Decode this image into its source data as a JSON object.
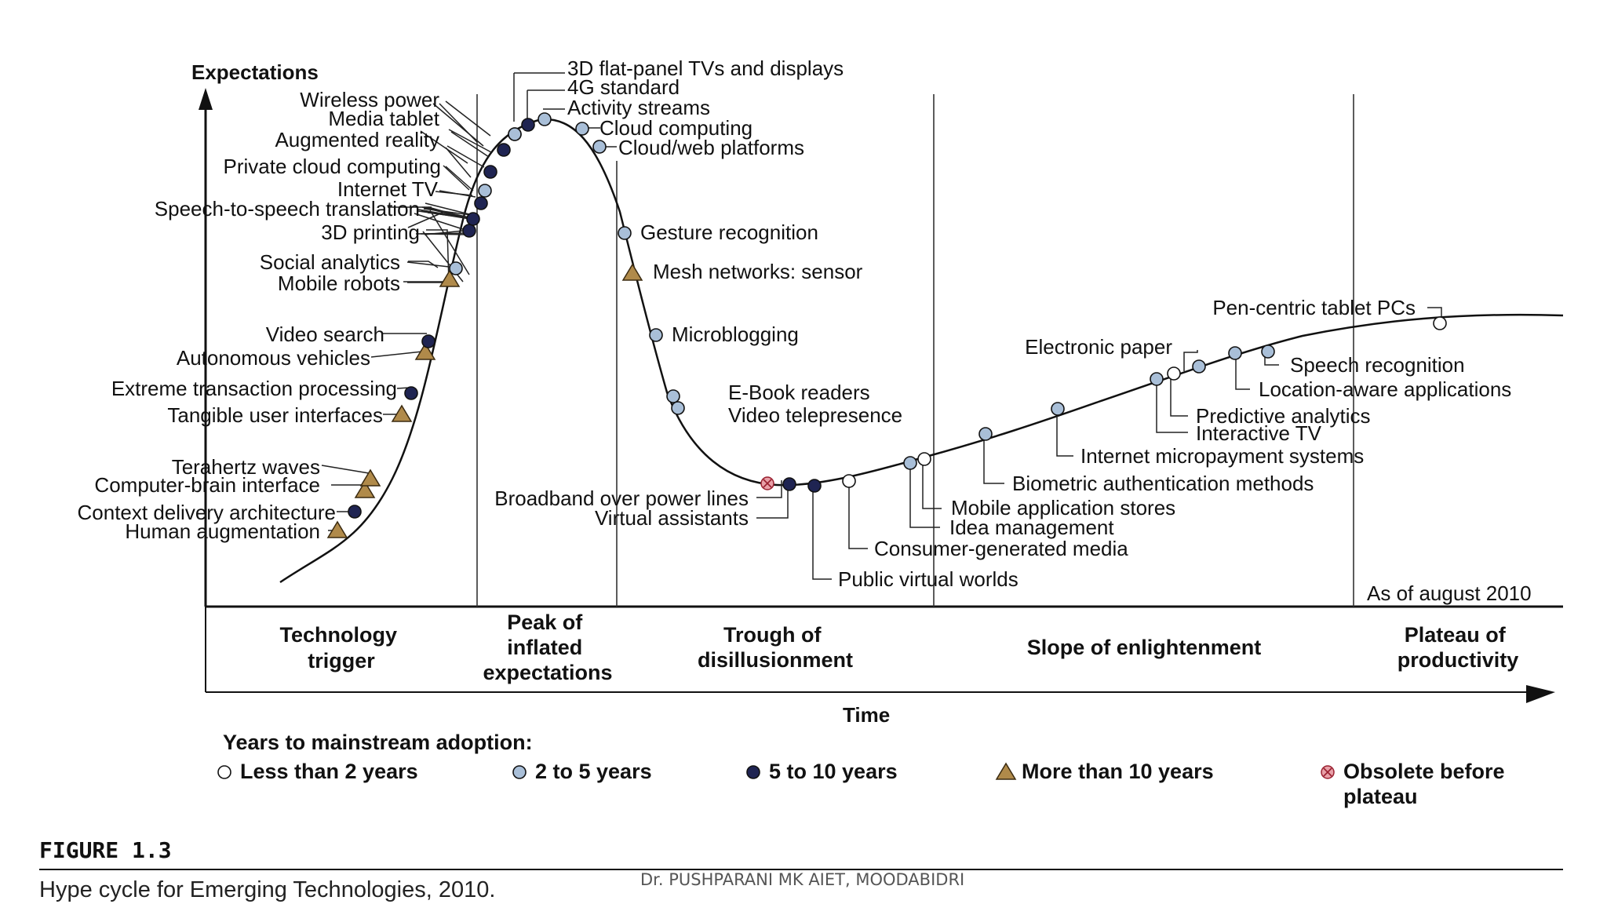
{
  "axes": {
    "y_label": "Expectations",
    "x_label": "Time",
    "as_of": "As of august 2010"
  },
  "phases": [
    {
      "line1": "Technology",
      "line2": "trigger"
    },
    {
      "line1": "Peak of",
      "line2": "inflated",
      "line3": "expectations"
    },
    {
      "line1": "Trough of",
      "line2": "disillusionment"
    },
    {
      "line1": "Slope of enlightenment"
    },
    {
      "line1": "Plateau of",
      "line2": "productivity"
    }
  ],
  "colors": {
    "less_than_2": "#ffffff",
    "two_to_five": "#a9bfd8",
    "five_to_ten": "#1f2452",
    "more_than_ten": "#b08a4a",
    "obsolete": "#e8a0a8"
  },
  "technologies": [
    {
      "name": "Human augmentation",
      "type": "more_than_ten"
    },
    {
      "name": "Context delivery architecture",
      "type": "five_to_ten"
    },
    {
      "name": "Computer-brain interface",
      "type": "more_than_ten"
    },
    {
      "name": "Terahertz waves",
      "type": "more_than_ten"
    },
    {
      "name": "Tangible user interfaces",
      "type": "more_than_ten"
    },
    {
      "name": "Extreme transaction processing",
      "type": "five_to_ten"
    },
    {
      "name": "Autonomous vehicles",
      "type": "more_than_ten"
    },
    {
      "name": "Video search",
      "type": "five_to_ten"
    },
    {
      "name": "Mobile robots",
      "type": "more_than_ten"
    },
    {
      "name": "Social analytics",
      "type": "two_to_five"
    },
    {
      "name": "3D printing",
      "type": "five_to_ten"
    },
    {
      "name": "Speech-to-speech translation",
      "type": "five_to_ten"
    },
    {
      "name": "Internet TV",
      "type": "five_to_ten"
    },
    {
      "name": "Private cloud computing",
      "type": "two_to_five"
    },
    {
      "name": "Augmented reality",
      "type": "five_to_ten"
    },
    {
      "name": "Media tablet",
      "type": "five_to_ten"
    },
    {
      "name": "Wireless power",
      "type": "two_to_five"
    },
    {
      "name": "3D flat-panel TVs and displays",
      "type": "two_to_five"
    },
    {
      "name": "4G standard",
      "type": "five_to_ten"
    },
    {
      "name": "Activity streams",
      "type": "two_to_five"
    },
    {
      "name": "Cloud computing",
      "type": "two_to_five"
    },
    {
      "name": "Cloud/web platforms",
      "type": "two_to_five"
    },
    {
      "name": "Gesture recognition",
      "type": "two_to_five"
    },
    {
      "name": "Mesh networks: sensor",
      "type": "more_than_ten"
    },
    {
      "name": "Microblogging",
      "type": "two_to_five"
    },
    {
      "name": "E-Book readers",
      "type": "two_to_five"
    },
    {
      "name": "Video telepresence",
      "type": "two_to_five"
    },
    {
      "name": "Broadband over power lines",
      "type": "obsolete"
    },
    {
      "name": "Virtual assistants",
      "type": "five_to_ten"
    },
    {
      "name": "Public virtual worlds",
      "type": "five_to_ten"
    },
    {
      "name": "Consumer-generated media",
      "type": "less_than_2"
    },
    {
      "name": "Idea management",
      "type": "two_to_five"
    },
    {
      "name": "Mobile application stores",
      "type": "less_than_2"
    },
    {
      "name": "Biometric authentication methods",
      "type": "two_to_five"
    },
    {
      "name": "Internet micropayment systems",
      "type": "two_to_five"
    },
    {
      "name": "Interactive TV",
      "type": "two_to_five"
    },
    {
      "name": "Predictive analytics",
      "type": "less_than_2"
    },
    {
      "name": "Electronic paper",
      "type": "two_to_five"
    },
    {
      "name": "Location-aware applications",
      "type": "two_to_five"
    },
    {
      "name": "Speech recognition",
      "type": "two_to_five"
    },
    {
      "name": "Pen-centric tablet PCs",
      "type": "less_than_2"
    }
  ],
  "legend": {
    "title": "Years to mainstream adoption:",
    "items": [
      {
        "label": "Less than 2 years",
        "type": "less_than_2"
      },
      {
        "label": "2 to 5 years",
        "type": "two_to_five"
      },
      {
        "label": "5 to 10 years",
        "type": "five_to_ten"
      },
      {
        "label": "More than 10 years",
        "type": "more_than_ten"
      },
      {
        "label": "Obsolete before",
        "label2": "plateau",
        "type": "obsolete"
      }
    ]
  },
  "figure": {
    "number": "FIGURE 1.3",
    "caption": "Hype cycle for Emerging Technologies, 2010."
  },
  "footer": "Dr. PUSHPARANI MK    AIET,   MOODABIDRI"
}
